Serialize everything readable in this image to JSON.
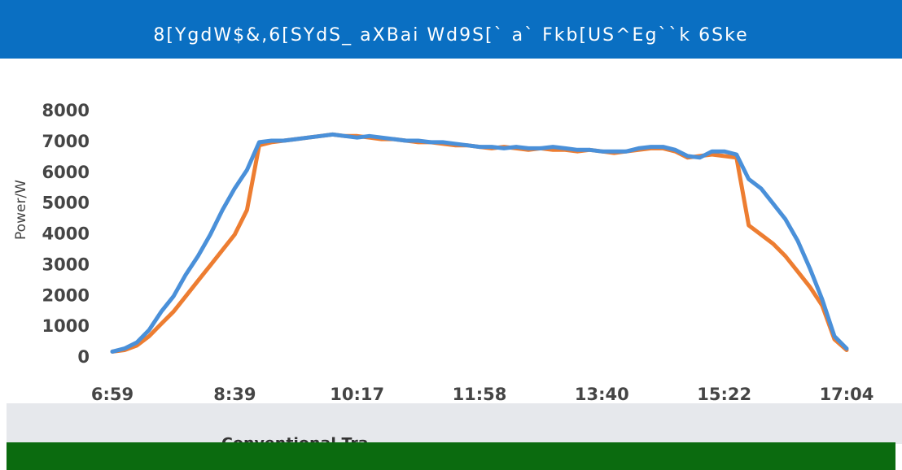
{
  "chart_data": {
    "type": "line",
    "title": "8[YgdW$&,6[SYdS_ aXBai Wd9S[` a` Fkb[US^Eg``k 6Ske",
    "y_label": "Power/W",
    "categories": [
      "6:59",
      null,
      null,
      null,
      null,
      null,
      null,
      null,
      null,
      null,
      "8:39",
      null,
      null,
      null,
      null,
      null,
      null,
      null,
      null,
      null,
      "10:17",
      null,
      null,
      null,
      null,
      null,
      null,
      null,
      null,
      null,
      "11:58",
      null,
      null,
      null,
      null,
      null,
      null,
      null,
      null,
      null,
      "13:40",
      null,
      null,
      null,
      null,
      null,
      null,
      null,
      null,
      null,
      "15:22",
      null,
      null,
      null,
      null,
      null,
      null,
      null,
      null,
      null,
      "17:04"
    ],
    "ylim": [
      0,
      8000
    ],
    "yticks": [
      0,
      1000,
      2000,
      3000,
      4000,
      5000,
      6000,
      7000,
      8000
    ],
    "series": [
      {
        "name": "Conventional Tra",
        "color": "#ed7d31",
        "values": [
          200,
          250,
          400,
          700,
          1100,
          1500,
          2000,
          2500,
          3000,
          3500,
          4000,
          4800,
          6900,
          7000,
          7050,
          7100,
          7150,
          7200,
          7250,
          7200,
          7200,
          7150,
          7100,
          7100,
          7050,
          7000,
          7000,
          6950,
          6900,
          6900,
          6850,
          6800,
          6850,
          6800,
          6750,
          6800,
          6750,
          6750,
          6700,
          6750,
          6700,
          6650,
          6700,
          6750,
          6800,
          6800,
          6700,
          6500,
          6550,
          6600,
          6550,
          6500,
          4300,
          4000,
          3700,
          3300,
          2800,
          2300,
          1700,
          600,
          250
        ]
      },
      {
        "color": "#4a90d9",
        "values": [
          200,
          300,
          500,
          900,
          1500,
          2000,
          2700,
          3300,
          4000,
          4800,
          5500,
          6100,
          7000,
          7050,
          7050,
          7100,
          7150,
          7200,
          7250,
          7200,
          7150,
          7200,
          7150,
          7100,
          7050,
          7050,
          7000,
          7000,
          6950,
          6900,
          6850,
          6850,
          6800,
          6850,
          6800,
          6800,
          6850,
          6800,
          6750,
          6750,
          6700,
          6700,
          6700,
          6800,
          6850,
          6850,
          6750,
          6550,
          6500,
          6700,
          6700,
          6600,
          5800,
          5500,
          5000,
          4500,
          3800,
          2900,
          1900,
          700,
          300
        ]
      }
    ]
  }
}
